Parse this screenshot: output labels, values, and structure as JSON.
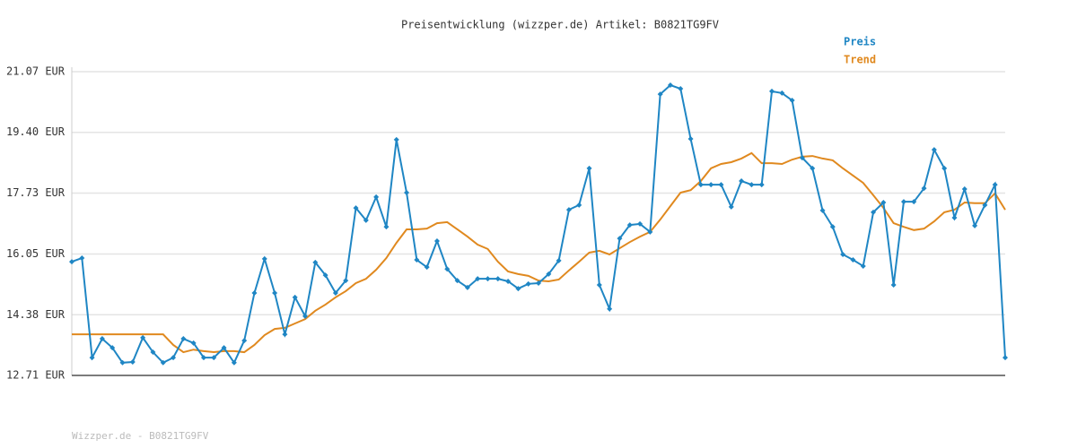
{
  "chart_data": {
    "type": "line",
    "title": "Preisentwicklung (wizzper.de) Artikel: B0821TG9FV",
    "footer": "Wizzper.de - B0821TG9FV",
    "categories": [
      null,
      null,
      null,
      null,
      null,
      null,
      null,
      null,
      null,
      null,
      null,
      null,
      null,
      null,
      null,
      null,
      null,
      null,
      null,
      null,
      null,
      null,
      null,
      null,
      null,
      null,
      null,
      null,
      null,
      null,
      null,
      null,
      null,
      null,
      null,
      null,
      null,
      null,
      null,
      null,
      null,
      null,
      null,
      null,
      null,
      null,
      null,
      null,
      null,
      null,
      null,
      null,
      null,
      null,
      null,
      null,
      null,
      null,
      null,
      null,
      null,
      null,
      null,
      null,
      null,
      null,
      null,
      null,
      null,
      null,
      null,
      null,
      null,
      null,
      null,
      null,
      null,
      null,
      null,
      null,
      null,
      null,
      null,
      null,
      null,
      null,
      null,
      null,
      null,
      null,
      null,
      null,
      null
    ],
    "series": [
      {
        "name": "Preis",
        "color": "#1f86c4",
        "markers": true,
        "values": [
          15.84,
          15.94,
          13.2,
          13.72,
          13.47,
          13.06,
          13.08,
          13.75,
          13.35,
          13.06,
          13.2,
          13.72,
          13.6,
          13.2,
          13.2,
          13.47,
          13.06,
          13.67,
          14.98,
          15.92,
          14.98,
          13.84,
          14.86,
          14.34,
          15.82,
          15.47,
          14.98,
          15.32,
          17.32,
          16.98,
          17.62,
          16.8,
          19.2,
          17.74,
          15.89,
          15.69,
          16.41,
          15.64,
          15.32,
          15.13,
          15.37,
          15.37,
          15.37,
          15.3,
          15.1,
          15.23,
          15.25,
          15.5,
          15.87,
          17.27,
          17.4,
          18.41,
          15.2,
          14.54,
          16.48,
          16.85,
          16.88,
          16.66,
          20.45,
          20.7,
          20.6,
          19.22,
          17.96,
          17.96,
          17.96,
          17.35,
          18.06,
          17.96,
          17.96,
          20.53,
          20.48,
          20.28,
          18.7,
          18.41,
          17.25,
          16.8,
          16.04,
          15.89,
          15.72,
          17.2,
          17.47,
          15.2,
          17.49,
          17.49,
          17.86,
          18.92,
          18.41,
          17.05,
          17.84,
          16.83,
          17.4,
          17.96,
          13.2
        ]
      },
      {
        "name": "Trend",
        "color": "#e0891f",
        "markers": false,
        "values": [
          13.84,
          13.84,
          13.84,
          13.84,
          13.84,
          13.84,
          13.84,
          13.84,
          13.84,
          13.84,
          13.55,
          13.35,
          13.42,
          13.38,
          13.35,
          13.38,
          13.38,
          13.35,
          13.55,
          13.82,
          13.99,
          14.02,
          14.14,
          14.26,
          14.49,
          14.66,
          14.86,
          15.03,
          15.25,
          15.37,
          15.62,
          15.94,
          16.36,
          16.73,
          16.73,
          16.75,
          16.9,
          16.93,
          16.73,
          16.53,
          16.31,
          16.19,
          15.84,
          15.57,
          15.5,
          15.45,
          15.32,
          15.3,
          15.35,
          15.6,
          15.84,
          16.09,
          16.14,
          16.04,
          16.21,
          16.38,
          16.53,
          16.66,
          17.0,
          17.37,
          17.74,
          17.81,
          18.06,
          18.41,
          18.53,
          18.58,
          18.68,
          18.83,
          18.55,
          18.55,
          18.53,
          18.65,
          18.73,
          18.75,
          18.68,
          18.63,
          18.41,
          18.21,
          18.01,
          17.67,
          17.32,
          16.9,
          16.8,
          16.71,
          16.75,
          16.95,
          17.2,
          17.27,
          17.47,
          17.45,
          17.45,
          17.72,
          17.27
        ]
      }
    ],
    "ylim": [
      12.71,
      21.07
    ],
    "yticks": [
      {
        "value": 12.71,
        "label": "12.71 EUR"
      },
      {
        "value": 14.38,
        "label": "14.38 EUR"
      },
      {
        "value": 16.05,
        "label": "16.05 EUR"
      },
      {
        "value": 17.73,
        "label": "17.73 EUR"
      },
      {
        "value": 19.4,
        "label": "19.40 EUR"
      },
      {
        "value": 21.07,
        "label": "21.07 EUR"
      }
    ],
    "grid": true
  }
}
